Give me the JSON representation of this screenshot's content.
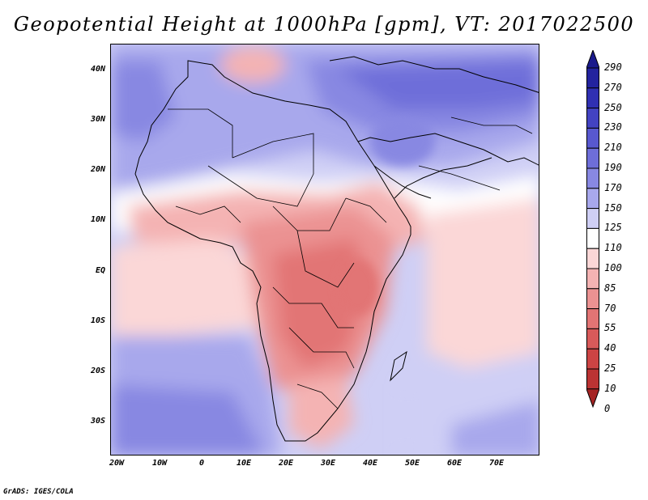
{
  "title": "Geopotential Height at 1000hPa [gpm], VT: 2017022500",
  "credit": "GrADS: IGES/COLA",
  "lat_labels": [
    "40N",
    "30N",
    "20N",
    "10N",
    "EQ",
    "10S",
    "20S",
    "30S"
  ],
  "lon_labels": [
    "20W",
    "10W",
    "0",
    "10E",
    "20E",
    "30E",
    "40E",
    "50E",
    "60E",
    "70E"
  ],
  "colorbar": {
    "labels": [
      "290",
      "270",
      "250",
      "230",
      "210",
      "190",
      "170",
      "150",
      "125",
      "110",
      "100",
      "85",
      "70",
      "55",
      "40",
      "25",
      "10",
      "0"
    ],
    "colors": [
      "#1a1a8c",
      "#23239e",
      "#3030b2",
      "#4343c2",
      "#5858cf",
      "#6e6ed9",
      "#8888e2",
      "#a8a8ec",
      "#cfcff5",
      "#ffffff",
      "#fbd7d7",
      "#f4b3b3",
      "#eb9292",
      "#e27474",
      "#d85a5a",
      "#cc4444",
      "#bb3333",
      "#a52424"
    ]
  },
  "map": {
    "background_color": "#cfcff5"
  }
}
